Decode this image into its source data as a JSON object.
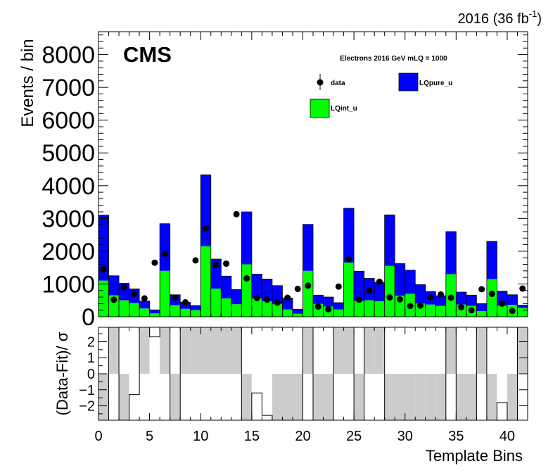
{
  "header": {
    "lumi_text": "2016 (36 fb",
    "lumi_sup": "-1",
    "lumi_close": ")"
  },
  "chart_data": [
    {
      "type": "bar",
      "stacked": true,
      "title": "",
      "experiment_label": "CMS",
      "annotation": "Electrons 2016  GeV mLQ = 1000",
      "xlabel": "",
      "ylabel": "Events / bin",
      "xlim": [
        0,
        42
      ],
      "ylim": [
        0,
        8700
      ],
      "yticks": [
        0,
        1000,
        2000,
        3000,
        4000,
        5000,
        6000,
        7000,
        8000
      ],
      "bin_width": 1,
      "bin_lo": [
        0,
        1,
        2,
        3,
        4,
        5,
        6,
        7,
        8,
        9,
        10,
        11,
        12,
        13,
        14,
        15,
        16,
        17,
        18,
        19,
        20,
        21,
        22,
        23,
        24,
        25,
        26,
        27,
        28,
        29,
        30,
        31,
        32,
        33,
        34,
        35,
        36,
        37,
        38,
        39,
        40,
        41
      ],
      "series": [
        {
          "name": "LQint_u",
          "color": "#00ff00",
          "values": [
            1100,
            650,
            500,
            420,
            250,
            100,
            1400,
            350,
            240,
            200,
            2150,
            860,
            560,
            380,
            1600,
            560,
            470,
            390,
            220,
            90,
            1400,
            390,
            310,
            220,
            1650,
            480,
            500,
            470,
            1550,
            640,
            700,
            400,
            370,
            330,
            1300,
            370,
            330,
            170,
            1150,
            340,
            360,
            270
          ]
        },
        {
          "name": "LQpure_u",
          "color": "#0000ff",
          "values": [
            2000,
            600,
            520,
            430,
            230,
            110,
            1440,
            320,
            200,
            140,
            2180,
            900,
            680,
            450,
            1600,
            740,
            680,
            560,
            350,
            140,
            1420,
            270,
            290,
            210,
            1660,
            910,
            670,
            580,
            1560,
            980,
            720,
            580,
            400,
            310,
            1300,
            380,
            330,
            230,
            1150,
            440,
            310,
            80
          ]
        }
      ],
      "data_points": {
        "name": "data",
        "values": [
          1450,
          520,
          900,
          690,
          560,
          1650,
          1920,
          580,
          440,
          1720,
          2700,
          1580,
          1620,
          3130,
          1170,
          570,
          520,
          430,
          580,
          850,
          950,
          310,
          230,
          920,
          1750,
          520,
          800,
          1070,
          590,
          530,
          330,
          340,
          600,
          680,
          580,
          290,
          200,
          840,
          700,
          400,
          180,
          860
        ]
      },
      "legend": {
        "placement": "top-right",
        "entries": [
          "data",
          "LQpure_u",
          "LQint_u"
        ]
      }
    },
    {
      "type": "bar",
      "title": "",
      "xlabel": "Template Bins",
      "ylabel": "(Data-Fit)/ σ",
      "xlim": [
        0,
        42
      ],
      "ylim": [
        -2.9,
        2.9
      ],
      "yticks": [
        -2,
        -1,
        0,
        1,
        2
      ],
      "xticks": [
        0,
        5,
        10,
        15,
        20,
        25,
        30,
        35,
        40
      ],
      "values": [
        -2.9,
        2.9,
        -2.9,
        -1.3,
        2.9,
        2.3,
        2.9,
        -2.9,
        2.9,
        2.9,
        2.9,
        2.9,
        2.9,
        2.9,
        -2.9,
        -1.2,
        -2.6,
        -2.9,
        -2.9,
        -2.9,
        2.9,
        -2.9,
        -2.9,
        2.9,
        2.9,
        -2.9,
        2.9,
        2.9,
        -2.9,
        -2.9,
        -2.9,
        -2.9,
        -2.9,
        -2.9,
        2.9,
        -2.9,
        -2.9,
        2.9,
        -2.9,
        -1.8,
        -2.9,
        2.9
      ]
    }
  ]
}
